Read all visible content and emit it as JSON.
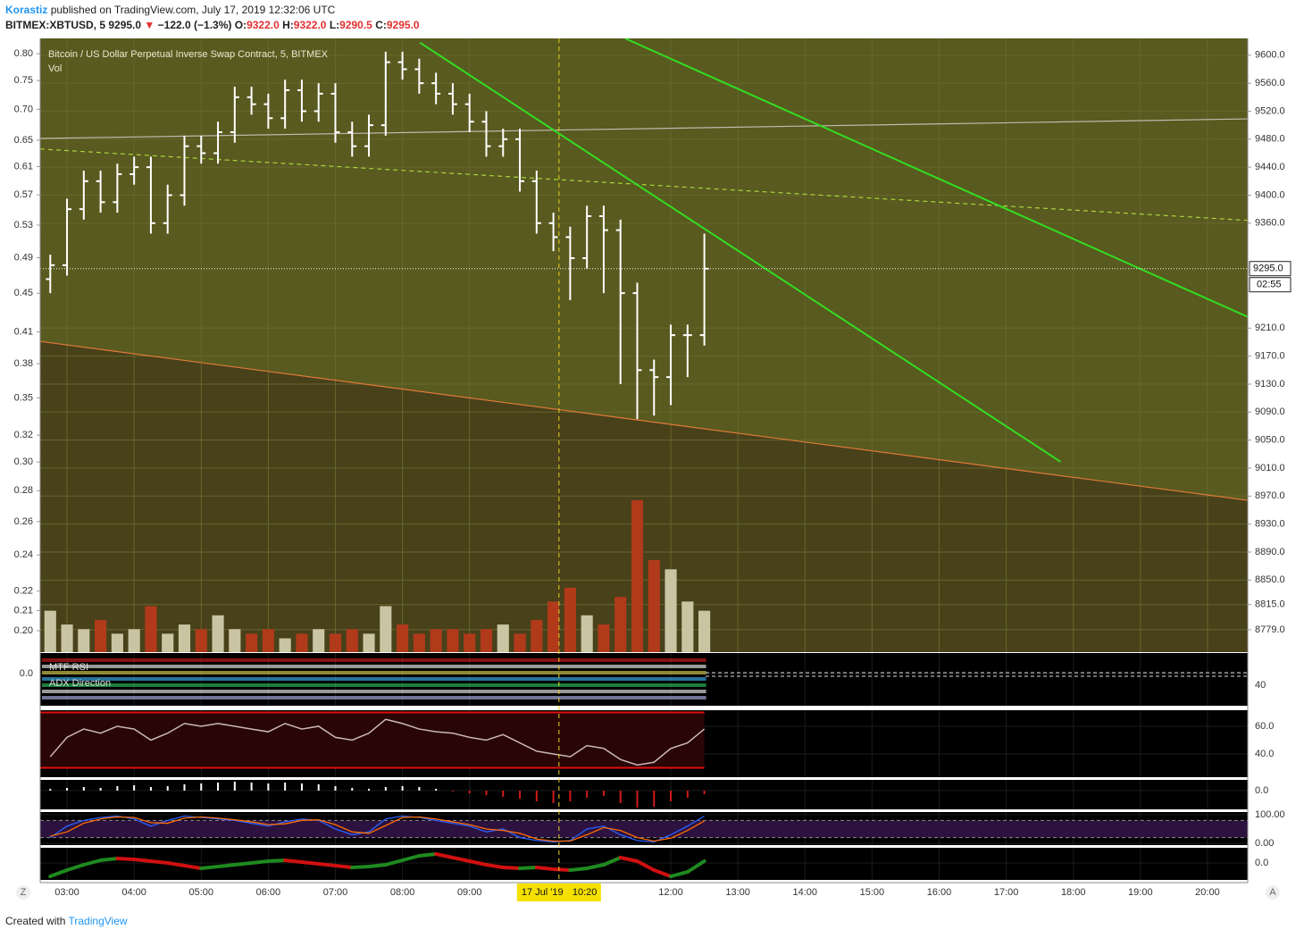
{
  "header": {
    "author": "Korastiz",
    "published": "published on TradingView.com, July 17, 2019 12:32:06 UTC",
    "symbol": "BITMEX:XBTUSD, 5",
    "price": "9295.0",
    "arrow": "▼",
    "change": "−122.0 (−1.3%)",
    "ohlc": [
      {
        "label": "O:",
        "value": "9322.0"
      },
      {
        "label": "H:",
        "value": "9322.0"
      },
      {
        "label": "L:",
        "value": "9290.5"
      },
      {
        "label": "C:",
        "value": "9295.0"
      }
    ]
  },
  "footer": {
    "text": "Created with",
    "brand": "TradingView"
  },
  "ui": {
    "left_button": "Z",
    "right_button": "A"
  },
  "chart_data": [
    {
      "type": "ohlc",
      "title": "Bitcoin / US Dollar Perpetual Inverse Swap Contract, 5, BITMEX",
      "bar_color": "#ffffff",
      "x": [
        2.75,
        3,
        3.25,
        3.5,
        3.75,
        4,
        4.25,
        4.5,
        4.75,
        5,
        5.25,
        5.5,
        5.75,
        6,
        6.25,
        6.5,
        6.75,
        7,
        7.25,
        7.5,
        7.75,
        8,
        8.25,
        8.5,
        8.75,
        9,
        9.25,
        9.5,
        9.75,
        10,
        10.25,
        10.5,
        10.75,
        11,
        11.25,
        11.5,
        11.75,
        12,
        12.25,
        12.5
      ],
      "open": [
        9280,
        9300,
        9380,
        9420,
        9390,
        9430,
        9440,
        9360,
        9400,
        9470,
        9460,
        9490,
        9540,
        9530,
        9510,
        9550,
        9520,
        9545,
        9490,
        9470,
        9500,
        9590,
        9580,
        9560,
        9545,
        9530,
        9505,
        9470,
        9480,
        9420,
        9360,
        9340,
        9310,
        9370,
        9350,
        9260,
        9150,
        9140,
        9200,
        9200
      ],
      "high": [
        9315,
        9395,
        9435,
        9435,
        9445,
        9455,
        9455,
        9415,
        9485,
        9485,
        9505,
        9555,
        9555,
        9545,
        9565,
        9565,
        9560,
        9560,
        9505,
        9515,
        9605,
        9605,
        9595,
        9575,
        9560,
        9545,
        9520,
        9495,
        9495,
        9435,
        9375,
        9355,
        9385,
        9385,
        9365,
        9275,
        9165,
        9215,
        9215,
        9345
      ],
      "low": [
        9260,
        9285,
        9365,
        9375,
        9375,
        9415,
        9345,
        9345,
        9385,
        9445,
        9445,
        9475,
        9515,
        9495,
        9495,
        9505,
        9505,
        9475,
        9455,
        9455,
        9485,
        9565,
        9545,
        9530,
        9515,
        9490,
        9455,
        9455,
        9405,
        9345,
        9320,
        9250,
        9295,
        9260,
        9130,
        9080,
        9085,
        9100,
        9140,
        9185
      ],
      "close": [
        9300,
        9380,
        9420,
        9390,
        9430,
        9440,
        9360,
        9400,
        9470,
        9460,
        9490,
        9540,
        9530,
        9510,
        9550,
        9520,
        9545,
        9490,
        9470,
        9500,
        9590,
        9580,
        9560,
        9545,
        9530,
        9505,
        9470,
        9480,
        9420,
        9360,
        9340,
        9310,
        9370,
        9350,
        9260,
        9150,
        9140,
        9200,
        9200,
        9295
      ],
      "volume": {
        "name": "Vol",
        "up_color": "#c9c4a2",
        "down_color": "#b03a1a",
        "values": [
          45,
          30,
          25,
          35,
          20,
          25,
          50,
          20,
          30,
          25,
          40,
          25,
          20,
          25,
          15,
          20,
          25,
          20,
          25,
          20,
          50,
          30,
          20,
          25,
          25,
          20,
          25,
          30,
          20,
          35,
          55,
          70,
          40,
          30,
          60,
          165,
          100,
          90,
          55,
          45
        ]
      },
      "xlim": [
        2.6,
        20.6
      ],
      "xticks": [
        {
          "value": 3,
          "label": "03:00"
        },
        {
          "value": 4,
          "label": "04:00"
        },
        {
          "value": 5,
          "label": "05:00"
        },
        {
          "value": 6,
          "label": "06:00"
        },
        {
          "value": 7,
          "label": "07:00"
        },
        {
          "value": 8,
          "label": "08:00"
        },
        {
          "value": 9,
          "label": "09:00"
        },
        {
          "value": 12,
          "label": "12:00"
        },
        {
          "value": 13,
          "label": "13:00"
        },
        {
          "value": 14,
          "label": "14:00"
        },
        {
          "value": 15,
          "label": "15:00"
        },
        {
          "value": 16,
          "label": "16:00"
        },
        {
          "value": 17,
          "label": "17:00"
        },
        {
          "value": 18,
          "label": "18:00"
        },
        {
          "value": 19,
          "label": "19:00"
        },
        {
          "value": 20,
          "label": "20:00"
        }
      ],
      "ylim": [
        8747,
        9624
      ],
      "yticks": [
        {
          "value": 9600,
          "label": "9600.0"
        },
        {
          "value": 9560,
          "label": "9560.0"
        },
        {
          "value": 9520,
          "label": "9520.0"
        },
        {
          "value": 9480,
          "label": "9480.0"
        },
        {
          "value": 9440,
          "label": "9440.0"
        },
        {
          "value": 9400,
          "label": "9400.0"
        },
        {
          "value": 9360,
          "label": "9360.0"
        },
        {
          "value": 9210,
          "label": "9210.0"
        },
        {
          "value": 9170,
          "label": "9170.0"
        },
        {
          "value": 9130,
          "label": "9130.0"
        },
        {
          "value": 9090,
          "label": "9090.0"
        },
        {
          "value": 9050,
          "label": "9050.0"
        },
        {
          "value": 9010,
          "label": "9010.0"
        },
        {
          "value": 8970,
          "label": "8970.0"
        },
        {
          "value": 8930,
          "label": "8930.0"
        },
        {
          "value": 8890,
          "label": "8890.0"
        },
        {
          "value": 8850,
          "label": "8850.0"
        },
        {
          "value": 8815,
          "label": "8815.0"
        },
        {
          "value": 8779,
          "label": "8779.0"
        }
      ],
      "y2lim": [
        0.19,
        0.83
      ],
      "y2_log": true,
      "y2ticks": [
        {
          "value": 0.8,
          "label": "0.80"
        },
        0.75,
        {
          "value": 0.7,
          "label": "0.70"
        },
        0.65,
        0.61,
        0.57,
        0.53,
        0.49,
        0.45,
        0.41,
        0.38,
        0.35,
        0.32,
        {
          "value": 0.3,
          "label": "0.30"
        },
        0.28,
        0.26,
        0.24,
        0.22,
        0.21,
        {
          "value": 0.2,
          "label": "0.20"
        }
      ],
      "grid": true,
      "last_price": {
        "value": 9295,
        "label": "9295.0",
        "countdown": "02:55"
      },
      "crosshair": {
        "x": 10.333,
        "date": "17 Jul '19",
        "time": "10:20"
      },
      "drawings": [
        {
          "x": [
            2.6,
            20.6
          ],
          "y": [
            9191,
            8964
          ],
          "color": "#e07a3a",
          "fill_below": "#48411a"
        },
        {
          "x": [
            2.6,
            20.6
          ],
          "y": [
            9481,
            9509
          ],
          "color": "#bdbdb2"
        },
        {
          "x": [
            2.6,
            20.6
          ],
          "y": [
            9466,
            9364
          ],
          "color": "#a8d43c",
          "dashed": true
        },
        {
          "x": [
            8.26,
            17.81
          ],
          "y": [
            9618,
            9019
          ],
          "color": "#33dd22"
        },
        {
          "x": [
            11.32,
            20.6
          ],
          "y": [
            9624,
            9226
          ],
          "color": "#33dd22"
        }
      ]
    },
    {
      "type": "indicator",
      "labels": [
        "MTF RSI",
        "ADX Direction"
      ],
      "ylim": [
        -36,
        23
      ],
      "yticks": [
        {
          "value": 0,
          "label": "0.0"
        }
      ],
      "y2lim": [
        17,
        76
      ],
      "y2ticks": [
        40
      ]
    },
    {
      "type": "line",
      "color": "#c9b7b7",
      "bands": [
        70,
        30
      ],
      "band_color": "#e01010",
      "ylim": [
        23.2,
        71.6
      ],
      "yticks": [
        {
          "value": 60,
          "label": "60.0"
        },
        {
          "value": 40,
          "label": "40.0"
        }
      ],
      "values": [
        38,
        52,
        58,
        55,
        60,
        58,
        50,
        55,
        62,
        60,
        62,
        60,
        58,
        56,
        62,
        58,
        60,
        52,
        50,
        55,
        65,
        62,
        58,
        56,
        55,
        52,
        50,
        54,
        48,
        42,
        40,
        38,
        46,
        44,
        36,
        32,
        34,
        44,
        48,
        58
      ]
    },
    {
      "type": "histogram",
      "up_color": "#ffffff",
      "down_color": "#d01a1a",
      "ylim": [
        -21,
        12
      ],
      "yticks": [
        {
          "value": 0,
          "label": "0.0"
        }
      ],
      "values": [
        2,
        3,
        4,
        3,
        5,
        6,
        4,
        5,
        7,
        8,
        9,
        10,
        9,
        8,
        9,
        8,
        7,
        5,
        3,
        2,
        4,
        5,
        4,
        2,
        -1,
        -3,
        -5,
        -7,
        -9,
        -12,
        -14,
        -12,
        -8,
        -6,
        -14,
        -19,
        -18,
        -12,
        -8,
        -4
      ]
    },
    {
      "type": "line",
      "band": [
        20,
        80
      ],
      "band_color": "#2d1240",
      "ylim": [
        -6,
        109
      ],
      "yticks": [
        {
          "value": 100,
          "label": "100.00"
        },
        {
          "value": 0,
          "label": "0.00"
        }
      ],
      "series": [
        {
          "color": "#2962ff",
          "values": [
            20,
            60,
            80,
            90,
            95,
            85,
            60,
            80,
            95,
            90,
            85,
            80,
            70,
            60,
            75,
            85,
            80,
            50,
            30,
            40,
            85,
            95,
            90,
            80,
            70,
            60,
            40,
            50,
            20,
            10,
            5,
            10,
            50,
            60,
            30,
            10,
            5,
            30,
            60,
            95
          ]
        },
        {
          "color": "#ff6d00",
          "values": [
            25,
            40,
            70,
            85,
            92,
            90,
            72,
            70,
            88,
            92,
            88,
            82,
            75,
            65,
            68,
            80,
            82,
            65,
            40,
            35,
            62,
            90,
            92,
            85,
            75,
            65,
            50,
            45,
            35,
            15,
            8,
            8,
            30,
            55,
            45,
            20,
            8,
            18,
            45,
            78
          ]
        }
      ]
    },
    {
      "type": "trend-line",
      "up_color": "#1f8a1f",
      "down_color": "#d01010",
      "ylim": [
        -19,
        17
      ],
      "yticks": [
        {
          "value": 0,
          "label": "0.0"
        }
      ],
      "values": [
        -15,
        -8,
        -2,
        3,
        5,
        4,
        2,
        0,
        -3,
        -6,
        -4,
        -2,
        0,
        2,
        3,
        1,
        -1,
        -3,
        -5,
        -4,
        -2,
        3,
        8,
        10,
        6,
        2,
        -2,
        -5,
        -6,
        -5,
        -7,
        -8,
        -6,
        -2,
        6,
        2,
        -8,
        -15,
        -10,
        2
      ]
    }
  ]
}
